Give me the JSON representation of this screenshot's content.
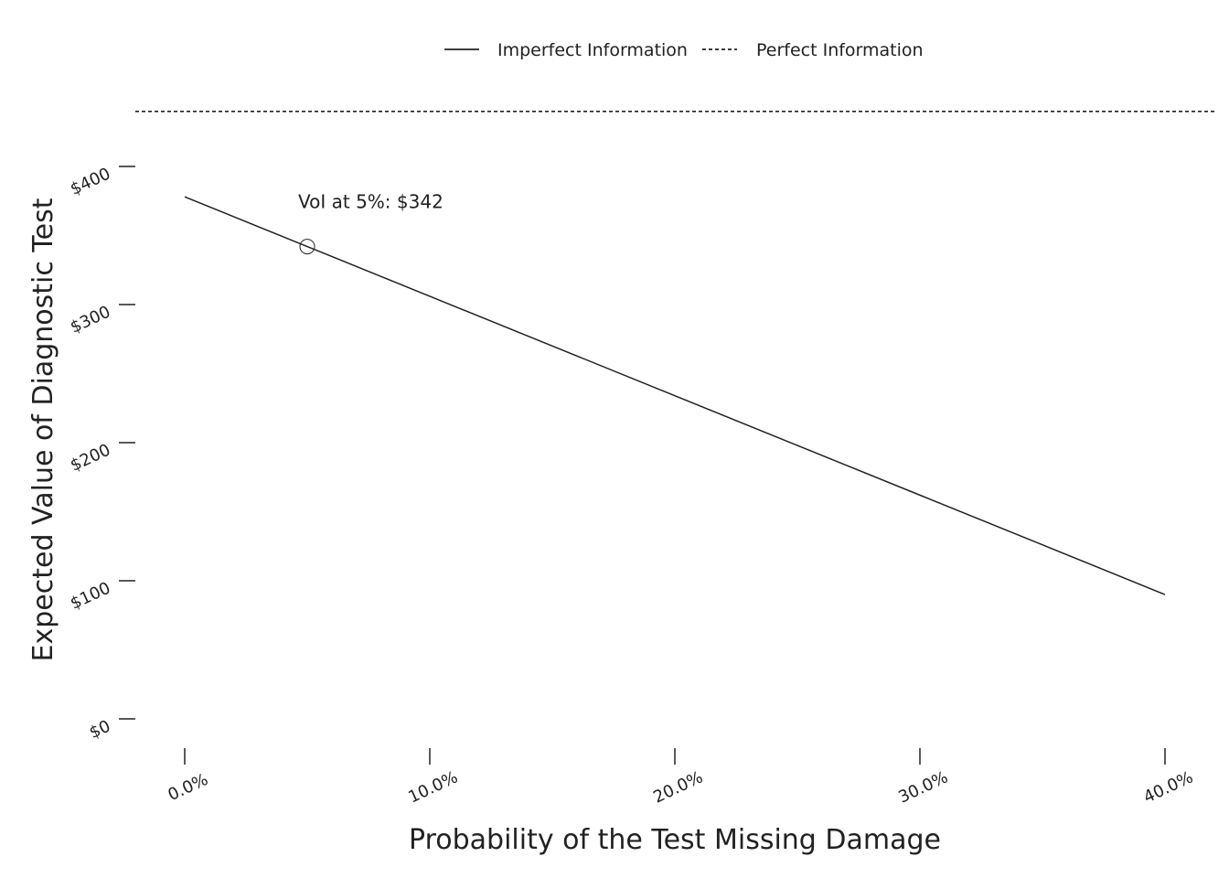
{
  "chart_data": {
    "type": "line",
    "title": "",
    "xlabel": "Probability of the Test Missing Damage",
    "ylabel": "Expected Value of Diagnostic Test",
    "x_format": "percent",
    "y_format": "currency",
    "xlim": [
      -0.02,
      0.4
    ],
    "ylim": [
      -20,
      420
    ],
    "x_ticks": [
      0.0,
      0.1,
      0.2,
      0.3,
      0.4
    ],
    "x_tick_labels": [
      "0.0%",
      "10.0%",
      "20.0%",
      "30.0%",
      "40.0%"
    ],
    "y_ticks": [
      0,
      100,
      200,
      300,
      400
    ],
    "y_tick_labels": [
      "$0",
      "$100",
      "$200",
      "$300",
      "$400"
    ],
    "grid": false,
    "legend": {
      "position": "top",
      "entries": [
        "Imperfect Information",
        "Perfect Information"
      ]
    },
    "series": [
      {
        "name": "Imperfect Information",
        "line_style": "solid",
        "color": "#222222",
        "x": [
          0.0,
          0.05,
          0.1,
          0.15,
          0.2,
          0.25,
          0.3,
          0.35,
          0.4
        ],
        "y": [
          378,
          342,
          306,
          270,
          234,
          198,
          162,
          126,
          90
        ]
      },
      {
        "name": "Perfect Information",
        "line_style": "dashed",
        "color": "#222222",
        "y_constant": 420
      }
    ],
    "annotations": [
      {
        "text": "VoI at 5%: $342",
        "x": 0.05,
        "y": 342,
        "marker": "open-circle"
      }
    ]
  }
}
